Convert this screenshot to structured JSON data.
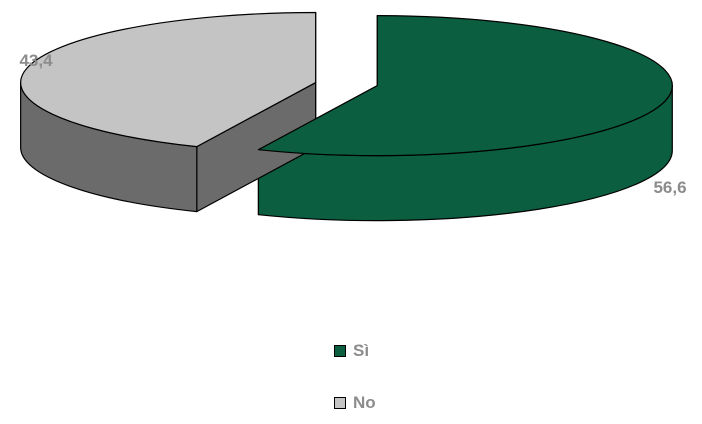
{
  "chart_data": {
    "type": "pie",
    "categories": [
      "Sì",
      "No"
    ],
    "values": [
      56.6,
      43.4
    ],
    "data_labels": [
      "56,6",
      "43,4"
    ],
    "colors": [
      "#0b5e3f",
      "#c4c4c4"
    ],
    "side_colors": [
      "#0b5e3f",
      "#6b6b6b"
    ],
    "exploded": true,
    "three_d": true,
    "legend_position": "bottom",
    "title": "",
    "label_color": "#8c8c8c"
  },
  "legend": {
    "items": [
      {
        "label": "Sì",
        "color": "#0b5e3f"
      },
      {
        "label": "No",
        "color": "#c4c4c4"
      }
    ]
  }
}
